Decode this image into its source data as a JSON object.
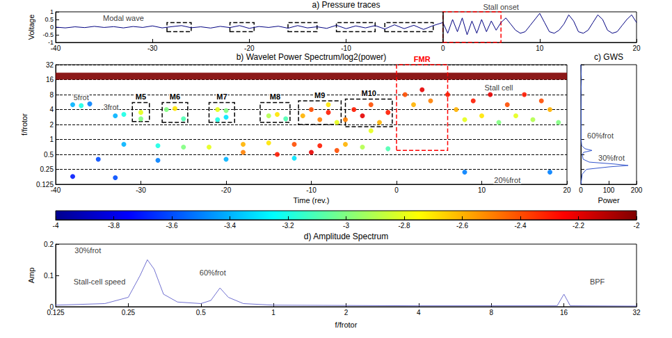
{
  "chart_data": [
    {
      "type": "line",
      "title": "a) Pressure traces",
      "y_label": "Voltage",
      "color": "#000080",
      "grid": false,
      "x": [
        -40,
        -39,
        -38,
        -37,
        -36,
        -35,
        -34,
        -33,
        -32,
        -31,
        -30,
        -29,
        -28,
        -27,
        -26,
        -25,
        -24,
        -23,
        -22,
        -21,
        -20,
        -19,
        -18,
        -17,
        -16,
        -15,
        -14,
        -13,
        -12,
        -11,
        -10,
        -9,
        -8,
        -7,
        -6,
        -5,
        -4,
        -3,
        -2,
        -1,
        0,
        0.5,
        1,
        1.5,
        2,
        2.5,
        3,
        3.5,
        4,
        4.5,
        5,
        5.5,
        6,
        6.5,
        7,
        7.5,
        8,
        8.5,
        9,
        9.5,
        10,
        10.5,
        11,
        11.5,
        12,
        12.5,
        13,
        13.5,
        14,
        14.5,
        15,
        15.5,
        16,
        16.5,
        17,
        17.5,
        18,
        18.5,
        19,
        19.5,
        20
      ],
      "values": [
        0,
        -0.05,
        0.02,
        -0.03,
        0.05,
        -0.02,
        0.03,
        -0.05,
        0.04,
        -0.02,
        0.08,
        -0.05,
        0.03,
        0.1,
        -0.04,
        0.02,
        -0.06,
        0.05,
        -0.03,
        0.1,
        -0.08,
        0.04,
        -0.02,
        0.06,
        -0.07,
        0.1,
        -0.05,
        0.02,
        -0.08,
        0.12,
        -0.1,
        0.08,
        -0.05,
        0.1,
        -0.12,
        0.15,
        -0.1,
        0.12,
        -0.15,
        0.1,
        0.3,
        -0.4,
        0.5,
        -0.3,
        0.6,
        -0.5,
        0.4,
        -0.4,
        0.5,
        -0.3,
        0.4,
        -0.2,
        0.3,
        0.6,
        0.2,
        -0.2,
        -0.4,
        -0.3,
        0.1,
        0.5,
        0.9,
        0.3,
        -0.3,
        -0.4,
        -0.2,
        0.2,
        0.8,
        0.4,
        -0.3,
        -0.4,
        -0.2,
        0.3,
        0.8,
        0.5,
        -0.2,
        -0.4,
        -0.3,
        0.1,
        0.5,
        0.8,
        0.3
      ],
      "xlim": [
        -40,
        20
      ],
      "xticks": [
        -40,
        -30,
        -20,
        -10,
        0,
        10,
        20
      ],
      "ylim": [
        -1,
        1
      ],
      "yticks": [
        -1,
        -0.5,
        0,
        0.5,
        1
      ],
      "vlines": [
        0
      ],
      "boxes": [
        {
          "x": [
            -28.5,
            -26
          ],
          "y": [
            -0.3,
            0.3
          ],
          "color": "#000000"
        },
        {
          "x": [
            -22,
            -19.5
          ],
          "y": [
            -0.3,
            0.3
          ],
          "color": "#000000"
        },
        {
          "x": [
            -16,
            -13
          ],
          "y": [
            -0.3,
            0.3
          ],
          "color": "#000000"
        },
        {
          "x": [
            -11,
            -7
          ],
          "y": [
            -0.3,
            0.3
          ],
          "color": "#000000"
        },
        {
          "x": [
            -6,
            -1
          ],
          "y": [
            -0.3,
            0.3
          ],
          "color": "#000000"
        },
        {
          "x": [
            0,
            6
          ],
          "y": [
            -1,
            1
          ],
          "color": "#ff0000"
        }
      ],
      "annotations": [
        {
          "text": "Modal wave",
          "x": -33,
          "y": 0.6
        },
        {
          "text": "Stall onset",
          "x": 6,
          "y": 1.3
        }
      ]
    },
    {
      "type": "scatter",
      "title": "b) Wavelet Power Spectrum/log2(power)",
      "x_label": "Time (rev.)",
      "y_label": "f/frotor",
      "log": "y",
      "grid": true,
      "xlim": [
        -40,
        20
      ],
      "xticks": [
        -40,
        -30,
        -20,
        -10,
        0,
        10,
        20
      ],
      "ylim": [
        0.125,
        32
      ],
      "yticks": [
        0.125,
        0.25,
        0.5,
        1,
        2,
        4,
        8,
        16,
        32
      ],
      "cells": [
        [
          -38,
          5,
          -3.4
        ],
        [
          -37,
          4.8,
          -3.2
        ],
        [
          -36,
          5.2,
          -3.5
        ],
        [
          -33,
          3,
          -3.4
        ],
        [
          -32,
          3.2,
          -3.2
        ],
        [
          -30,
          3.5,
          -2.8
        ],
        [
          -30,
          2.6,
          -3
        ],
        [
          -27,
          4,
          -3
        ],
        [
          -26,
          4.2,
          -2.7
        ],
        [
          -25,
          2.6,
          -3.1
        ],
        [
          -21,
          4,
          -2.8
        ],
        [
          -20,
          3.8,
          -3
        ],
        [
          -21,
          2.5,
          -3.2
        ],
        [
          -20,
          2.8,
          -3.3
        ],
        [
          -15,
          3,
          -2.9
        ],
        [
          -14,
          3.2,
          -2.7
        ],
        [
          -13,
          2.6,
          -3.1
        ],
        [
          -11,
          3,
          -2.6
        ],
        [
          -10,
          4,
          -2.4
        ],
        [
          -9,
          2.5,
          -2.5
        ],
        [
          -8,
          5,
          -2.7
        ],
        [
          -8,
          3.5,
          -2.3
        ],
        [
          -7,
          2.2,
          -2.8
        ],
        [
          -6,
          2.5,
          -2.5
        ],
        [
          -5,
          4,
          -2.3
        ],
        [
          -4,
          3,
          -2.2
        ],
        [
          -3,
          5,
          -2.4
        ],
        [
          -2,
          2.2,
          -2.6
        ],
        [
          -1,
          3.5,
          -2.3
        ],
        [
          -3,
          1.5,
          -2.8
        ],
        [
          -32,
          0.8,
          -3.4
        ],
        [
          -28,
          0.75,
          -3.2
        ],
        [
          -25,
          0.7,
          -3
        ],
        [
          -22,
          0.7,
          -2.8
        ],
        [
          -18,
          0.8,
          -2.6
        ],
        [
          -15,
          0.85,
          -2.7
        ],
        [
          -12,
          0.8,
          -2.4
        ],
        [
          -9,
          0.75,
          -2.3
        ],
        [
          -6,
          0.8,
          -2.6
        ],
        [
          -18,
          0.55,
          -2.5
        ],
        [
          -14,
          0.5,
          -2.3
        ],
        [
          -10,
          0.55,
          -2.2
        ],
        [
          -7,
          0.6,
          -2.4
        ],
        [
          -4,
          0.7,
          -2.9
        ],
        [
          -1,
          0.65,
          -3.1
        ],
        [
          -35,
          0.4,
          -3.6
        ],
        [
          -28,
          0.38,
          -3.5
        ],
        [
          -20,
          0.4,
          -3.4
        ],
        [
          -12,
          0.42,
          -3.3
        ],
        [
          -38,
          0.18,
          -3.7
        ],
        [
          -33,
          0.17,
          -3.6
        ],
        [
          1,
          8,
          -2.4
        ],
        [
          2,
          5,
          -2.6
        ],
        [
          3,
          10,
          -2.2
        ],
        [
          4,
          6,
          -2.5
        ],
        [
          6,
          8,
          -2.3
        ],
        [
          7,
          4,
          -2.6
        ],
        [
          8,
          2.5,
          -2.8
        ],
        [
          9,
          6,
          -2.3
        ],
        [
          10,
          3,
          -2.7
        ],
        [
          11,
          8,
          -2.2
        ],
        [
          12,
          2.2,
          -3
        ],
        [
          13,
          5,
          -2.4
        ],
        [
          14,
          3,
          -2.8
        ],
        [
          15,
          8,
          -2.3
        ],
        [
          16,
          2.5,
          -2.9
        ],
        [
          17,
          6,
          -2.4
        ],
        [
          18,
          4,
          -2.6
        ],
        [
          19,
          2.2,
          -3
        ],
        [
          8,
          0.22,
          -3.5
        ],
        [
          18,
          0.22,
          -3.5
        ]
      ],
      "bands": [
        {
          "x": [
            -40,
            20
          ],
          "y": [
            16,
            22
          ],
          "value": -2
        }
      ],
      "colorbar": {
        "range": [
          -4,
          -2
        ],
        "ticks": [
          -4,
          -3.8,
          -3.6,
          -3.4,
          -3.2,
          -3,
          -2.8,
          -2.6,
          -2.4,
          -2.2,
          -2
        ],
        "colors": [
          "#00008f",
          "#0000ff",
          "#0080ff",
          "#00ffff",
          "#80ff80",
          "#ffff00",
          "#ff8000",
          "#ff0000",
          "#800000"
        ]
      },
      "boxes": [
        {
          "label": "M5",
          "x": [
            -31,
            -29
          ],
          "y": [
            2.3,
            5.5
          ],
          "color": "#000000"
        },
        {
          "label": "M6",
          "x": [
            -27.5,
            -24.5
          ],
          "y": [
            2.2,
            5.5
          ],
          "color": "#000000"
        },
        {
          "label": "M7",
          "x": [
            -22,
            -19
          ],
          "y": [
            2.2,
            5.5
          ],
          "color": "#000000"
        },
        {
          "label": "M8",
          "x": [
            -16,
            -12.5
          ],
          "y": [
            2.2,
            5.5
          ],
          "color": "#000000"
        },
        {
          "label": "M9",
          "x": [
            -11.5,
            -6.5
          ],
          "y": [
            2,
            6
          ],
          "color": "#000000"
        },
        {
          "label": "M10",
          "x": [
            -6,
            -0.5
          ],
          "y": [
            1.8,
            6.5
          ],
          "color": "#000000"
        },
        {
          "label": "FMR",
          "x": [
            0,
            6
          ],
          "y": [
            0.6,
            32
          ],
          "color": "#ff0000"
        }
      ],
      "annotations": [
        {
          "text": "5frot",
          "x": -37,
          "y": 7
        },
        {
          "text": "3frot",
          "x": -33.5,
          "y": 4.5
        },
        {
          "text": "Stall cell",
          "x": 12,
          "y": 11
        },
        {
          "text": "20%frot",
          "x": 13,
          "y": 0.15
        }
      ]
    },
    {
      "type": "line",
      "title": "c) GWS",
      "x_label": "Power",
      "log": "y",
      "grid": false,
      "tick_labels": "x",
      "color": "#3355cc",
      "x": [
        0,
        5,
        20,
        100,
        170,
        120,
        30,
        8,
        5,
        10,
        40,
        15,
        3,
        1,
        1,
        1,
        0.5,
        2,
        0
      ],
      "y": [
        0.125,
        0.2,
        0.25,
        0.28,
        0.3,
        0.32,
        0.35,
        0.4,
        0.5,
        0.55,
        0.6,
        0.65,
        0.75,
        1,
        2,
        4,
        8,
        16,
        32
      ],
      "xlim": [
        0,
        200
      ],
      "xticks": [
        0,
        100,
        200
      ],
      "ylim": [
        0.125,
        32
      ],
      "yticks": [
        0.125,
        0.25,
        0.5,
        1,
        2,
        4,
        8,
        16,
        32
      ],
      "annotations": [
        {
          "text": "60%frot",
          "x": 70,
          "y": 1.2
        },
        {
          "text": "30%frot",
          "x": 110,
          "y": 0.42
        }
      ]
    },
    {
      "type": "line",
      "title": "d) Amplitude Spectrum",
      "x_label": "f/frotor",
      "y_label": "Amp",
      "log": "x",
      "grid": false,
      "color": "#7070d0",
      "x": [
        0.125,
        0.2,
        0.25,
        0.28,
        0.3,
        0.32,
        0.35,
        0.4,
        0.5,
        0.55,
        0.6,
        0.65,
        0.75,
        1,
        2,
        4,
        8,
        15,
        16,
        17,
        32
      ],
      "values": [
        0.005,
        0.01,
        0.03,
        0.1,
        0.15,
        0.12,
        0.04,
        0.015,
        0.01,
        0.02,
        0.06,
        0.03,
        0.01,
        0.005,
        0.004,
        0.003,
        0.003,
        0.003,
        0.04,
        0.003,
        0.002
      ],
      "xlim": [
        0.125,
        32
      ],
      "xticks": [
        0.125,
        0.25,
        0.5,
        1,
        2,
        4,
        8,
        16,
        32
      ],
      "ylim": [
        0,
        0.2
      ],
      "yticks": [
        0,
        0.1,
        0.2
      ],
      "annotations": [
        {
          "text": "30%frot",
          "x": 0.17,
          "y": 0.18
        },
        {
          "text": "60%frot",
          "x": 0.56,
          "y": 0.11
        },
        {
          "text": "Stall-cell speed",
          "x": 0.19,
          "y": 0.08
        },
        {
          "text": "BPF",
          "x": 22,
          "y": 0.08
        }
      ]
    }
  ]
}
